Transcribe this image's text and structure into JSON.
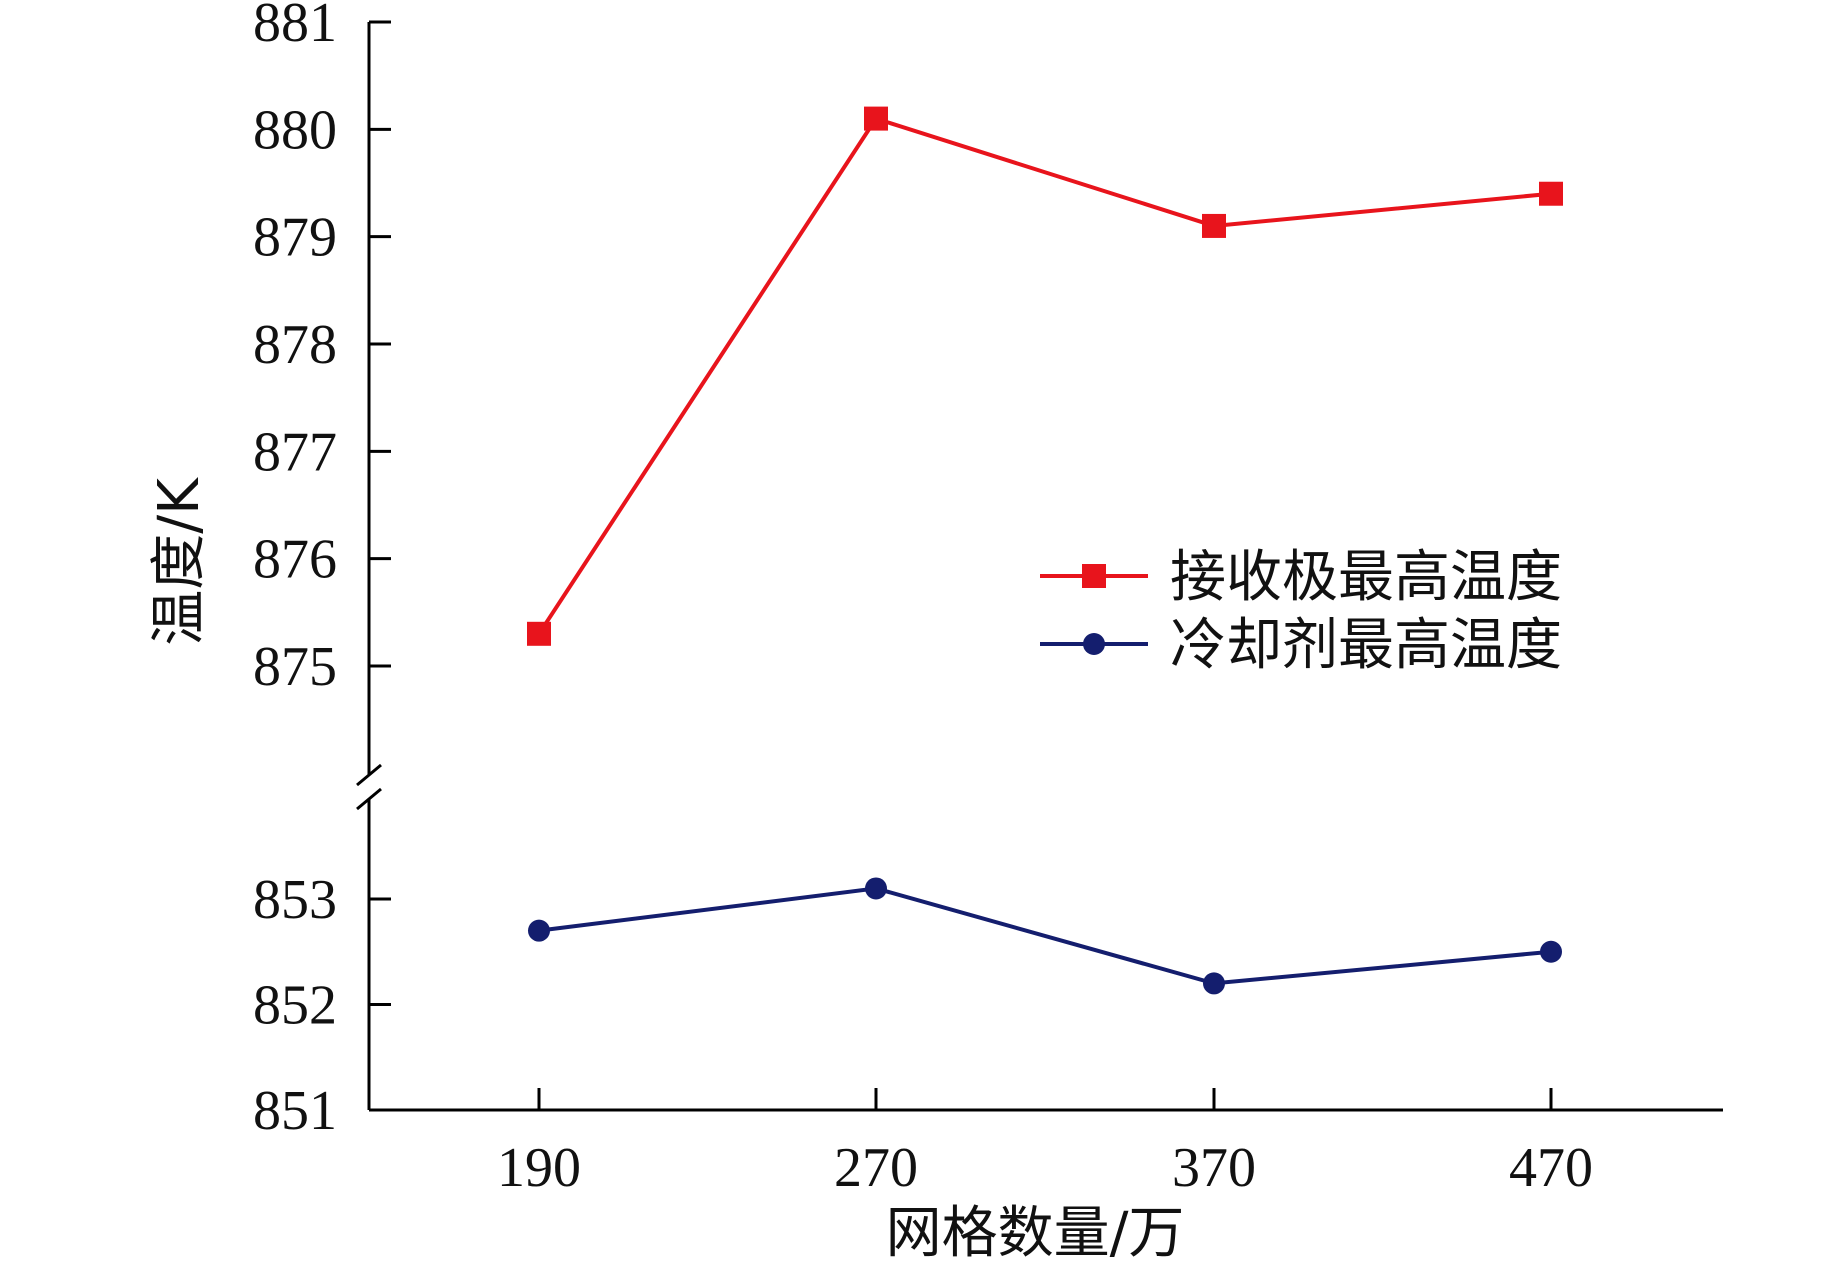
{
  "chart_data": {
    "type": "line",
    "xlabel": "网格数量/万",
    "ylabel": "温度/K",
    "categories": [
      "190",
      "270",
      "370",
      "470"
    ],
    "y_axis_broken": true,
    "y_segments": [
      {
        "range": [
          874,
          881
        ],
        "ticks": [
          875,
          876,
          877,
          878,
          879,
          880,
          881
        ]
      },
      {
        "range": [
          851,
          853.9
        ],
        "ticks": [
          851,
          852,
          853
        ]
      }
    ],
    "series": [
      {
        "name": "接收极最高温度",
        "color": "#e8141c",
        "marker": "square",
        "values": [
          875.3,
          880.1,
          879.1,
          879.4
        ]
      },
      {
        "name": "冷却剂最高温度",
        "color": "#141e6e",
        "marker": "circle",
        "values": [
          852.7,
          853.1,
          852.2,
          852.5
        ]
      }
    ],
    "legend_position": "right-middle"
  }
}
